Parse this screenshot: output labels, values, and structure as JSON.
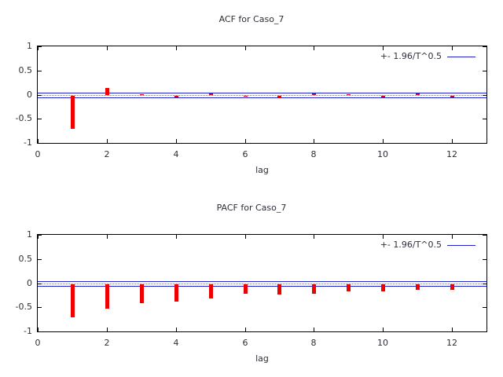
{
  "window": {
    "background": "#ffffff"
  },
  "colors": {
    "bar": "#ee0000",
    "band_line": "#2222cc",
    "frame": "#000000",
    "tick": "#000000",
    "zero_dotted": "#777777",
    "text": "#2e2e38"
  },
  "chart_data": [
    {
      "type": "bar",
      "title": "ACF for Caso_7",
      "xlabel": "lag",
      "ylabel": "",
      "legend": "+- 1.96/T^0.5",
      "legend_position": "top-right",
      "grid": false,
      "xlim": [
        0,
        13
      ],
      "ylim": [
        -1,
        1
      ],
      "xticks": [
        0,
        2,
        4,
        6,
        8,
        10,
        12
      ],
      "yticks": [
        "1",
        "0.5",
        "0",
        "-0.5",
        "-1"
      ],
      "x": [
        1,
        2,
        3,
        4,
        5,
        6,
        7,
        8,
        9,
        10,
        11,
        12
      ],
      "values": [
        -0.68,
        0.15,
        0.02,
        -0.04,
        0.03,
        -0.01,
        -0.05,
        0.04,
        0.01,
        -0.03,
        0.04,
        -0.03
      ],
      "confidence_band": 0.045,
      "bar_color": "#ee0000",
      "band_color": "#2222cc"
    },
    {
      "type": "bar",
      "title": "PACF for Caso_7",
      "xlabel": "lag",
      "ylabel": "",
      "legend": "+- 1.96/T^0.5",
      "legend_position": "top-right",
      "grid": false,
      "xlim": [
        0,
        13
      ],
      "ylim": [
        -1,
        1
      ],
      "xticks": [
        0,
        2,
        4,
        6,
        8,
        10,
        12
      ],
      "yticks": [
        "1",
        "0.5",
        "0",
        "-0.5",
        "-1"
      ],
      "x": [
        1,
        2,
        3,
        4,
        5,
        6,
        7,
        8,
        9,
        10,
        11,
        12
      ],
      "values": [
        -0.68,
        -0.51,
        -0.39,
        -0.35,
        -0.29,
        -0.19,
        -0.21,
        -0.19,
        -0.15,
        -0.14,
        -0.12,
        -0.11
      ],
      "confidence_band": 0.045,
      "bar_color": "#ee0000",
      "band_color": "#2222cc"
    }
  ]
}
